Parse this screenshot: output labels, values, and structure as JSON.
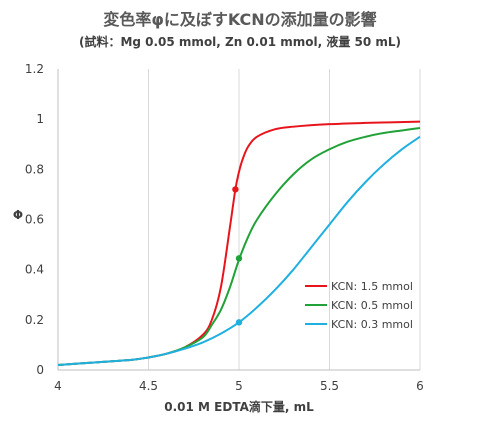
{
  "chart_data": {
    "type": "line",
    "title": "変色率φに及ぼすKCNの添加量の影響",
    "subtitle": "(試料：Mg 0.05 mmol, Zn 0.01 mmol, 液量 50 mL)",
    "xlabel": "0.01 M EDTA滴下量, mL",
    "ylabel": "Φ",
    "xlim": [
      4,
      6
    ],
    "ylim": [
      0,
      1.2
    ],
    "xticks": [
      "4",
      "4.5",
      "5",
      "5.5",
      "6"
    ],
    "yticks": [
      "0",
      "0.2",
      "0.4",
      "0.6",
      "0.8",
      "1",
      "1.2"
    ],
    "grid": "vertical",
    "legend_position": "right",
    "series": [
      {
        "name": "KCN: 1.5 mmol",
        "color": "#e8141c",
        "x": [
          4.0,
          4.2,
          4.4,
          4.5,
          4.6,
          4.7,
          4.8,
          4.85,
          4.9,
          4.95,
          4.98,
          5.0,
          5.02,
          5.05,
          5.1,
          5.2,
          5.3,
          5.5,
          5.7,
          6.0
        ],
        "y": [
          0.02,
          0.03,
          0.04,
          0.05,
          0.065,
          0.09,
          0.14,
          0.2,
          0.33,
          0.57,
          0.72,
          0.79,
          0.84,
          0.89,
          0.93,
          0.96,
          0.97,
          0.98,
          0.985,
          0.99
        ],
        "marker": {
          "x": 4.98,
          "y": 0.72
        }
      },
      {
        "name": "KCN: 0.5 mmol",
        "color": "#21a238",
        "x": [
          4.0,
          4.2,
          4.4,
          4.5,
          4.6,
          4.7,
          4.8,
          4.85,
          4.9,
          4.95,
          5.0,
          5.05,
          5.1,
          5.2,
          5.3,
          5.4,
          5.5,
          5.6,
          5.7,
          5.8,
          5.9,
          6.0
        ],
        "y": [
          0.02,
          0.03,
          0.04,
          0.05,
          0.065,
          0.09,
          0.13,
          0.18,
          0.24,
          0.33,
          0.44,
          0.53,
          0.6,
          0.7,
          0.78,
          0.84,
          0.88,
          0.91,
          0.93,
          0.945,
          0.955,
          0.965
        ],
        "marker": {
          "x": 5.0,
          "y": 0.445
        }
      },
      {
        "name": "KCN: 0.3 mmol",
        "color": "#1fb0e0",
        "x": [
          4.0,
          4.2,
          4.4,
          4.5,
          4.6,
          4.7,
          4.8,
          4.9,
          5.0,
          5.1,
          5.2,
          5.3,
          5.4,
          5.5,
          5.6,
          5.7,
          5.8,
          5.9,
          6.0
        ],
        "y": [
          0.02,
          0.03,
          0.04,
          0.05,
          0.065,
          0.085,
          0.11,
          0.145,
          0.19,
          0.25,
          0.32,
          0.4,
          0.49,
          0.58,
          0.67,
          0.75,
          0.82,
          0.88,
          0.93
        ],
        "marker": {
          "x": 5.0,
          "y": 0.19
        }
      }
    ]
  }
}
